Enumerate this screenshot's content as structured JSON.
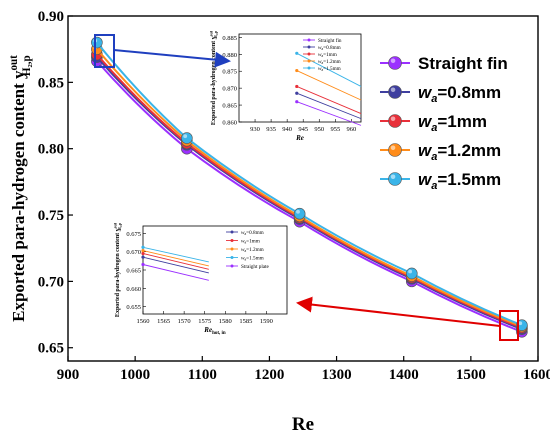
{
  "chart_data": [
    {
      "type": "line",
      "xlabel": "Re",
      "ylabel": "Exported para-hydrogen content y",
      "ylabel_sup": "out",
      "ylabel_sub": "H₂,p",
      "xlim": [
        900,
        1600
      ],
      "ylim": [
        0.64,
        0.9
      ],
      "xticks": [
        "900",
        "1000",
        "1100",
        "1200",
        "1300",
        "1400",
        "1500",
        "1600"
      ],
      "yticks": [
        "0.65",
        "0.70",
        "0.75",
        "0.80",
        "0.85",
        "0.90"
      ],
      "legend_position": "right",
      "x": [
        943,
        1077,
        1245,
        1412,
        1576
      ],
      "series": [
        {
          "name": "Straight fin",
          "prefix": "Straight fin",
          "suffix": "",
          "color": "#9b30ff",
          "values": [
            0.866,
            0.8,
            0.745,
            0.7,
            0.662
          ]
        },
        {
          "name": "wa=0.8mm",
          "prefix": "w",
          "sub": "a",
          "suffix": "=0.8mm",
          "color": "#3f3f9f",
          "values": [
            0.869,
            0.803,
            0.747,
            0.702,
            0.664
          ]
        },
        {
          "name": "wa=1mm",
          "prefix": "w",
          "sub": "a",
          "suffix": "=1mm",
          "color": "#e8303a",
          "values": [
            0.871,
            0.804,
            0.748,
            0.703,
            0.665
          ]
        },
        {
          "name": "wa=1.2mm",
          "prefix": "w",
          "sub": "a",
          "suffix": "=1.2mm",
          "color": "#ff8c1a",
          "values": [
            0.875,
            0.806,
            0.749,
            0.704,
            0.666
          ]
        },
        {
          "name": "wa=1.5mm",
          "prefix": "w",
          "sub": "a",
          "suffix": "=1.5mm",
          "color": "#3ab4e8",
          "values": [
            0.88,
            0.808,
            0.751,
            0.706,
            0.667
          ]
        }
      ]
    },
    {
      "type": "line",
      "inset": "top",
      "xlabel": "Re",
      "ylabel": "Exported para-hydrogen content y",
      "ylabel_sup": "out",
      "ylabel_sub": "H₂,p",
      "xlim": [
        925,
        963
      ],
      "ylim": [
        0.86,
        0.886
      ],
      "xticks": [
        "930",
        "935",
        "940",
        "945",
        "950",
        "955",
        "960"
      ],
      "yticks": [
        "0.860",
        "0.865",
        "0.870",
        "0.875",
        "0.880",
        "0.885"
      ],
      "x": [
        943,
        963
      ],
      "series": [
        {
          "name": "Straight fin",
          "color": "#9b30ff",
          "values": [
            0.866,
            0.859
          ]
        },
        {
          "name": "wa=0.8mm",
          "color": "#3f3f9f",
          "values": [
            0.8685,
            0.861
          ]
        },
        {
          "name": "wa=1mm",
          "color": "#e8303a",
          "values": [
            0.8705,
            0.8625
          ]
        },
        {
          "name": "wa=1.2mm",
          "color": "#ff8c1a",
          "values": [
            0.8752,
            0.8665
          ]
        },
        {
          "name": "wa=1.5mm",
          "color": "#3ab4e8",
          "values": [
            0.8803,
            0.8705
          ]
        }
      ],
      "legend": [
        "Straight fin",
        "wa=0.8mm",
        "wa=1mm",
        "wa=1.2mm",
        "wa=1.5mm"
      ]
    },
    {
      "type": "line",
      "inset": "bottom",
      "xlabel": "Re",
      "xlabel_sub": "hot, in",
      "ylabel": "Exported para-hydrogen content y",
      "ylabel_sup": "out",
      "ylabel_sub": "H₂,p",
      "xlim": [
        1560,
        1595
      ],
      "ylim": [
        0.653,
        0.677
      ],
      "xticks": [
        "1560",
        "1565",
        "1570",
        "1575",
        "1580",
        "1585",
        "1590"
      ],
      "yticks": [
        "0.655",
        "0.660",
        "0.665",
        "0.670",
        "0.675"
      ],
      "x": [
        1560,
        1576
      ],
      "series": [
        {
          "name": "wa=0.8mm",
          "color": "#3f3f9f",
          "values": [
            0.6685,
            0.6642
          ]
        },
        {
          "name": "wa=1mm",
          "color": "#e8303a",
          "values": [
            0.6695,
            0.6652
          ]
        },
        {
          "name": "wa=1.2mm",
          "color": "#ff8c1a",
          "values": [
            0.6703,
            0.6661
          ]
        },
        {
          "name": "wa=1.5mm",
          "color": "#3ab4e8",
          "values": [
            0.6712,
            0.6672
          ]
        },
        {
          "name": "Straight plate",
          "color": "#9b30ff",
          "values": [
            0.6665,
            0.6622
          ]
        }
      ],
      "legend": [
        "wa=0.8mm",
        "wa=1mm",
        "wa=1.2mm",
        "wa=1.5mm",
        "Straight plate"
      ]
    }
  ]
}
